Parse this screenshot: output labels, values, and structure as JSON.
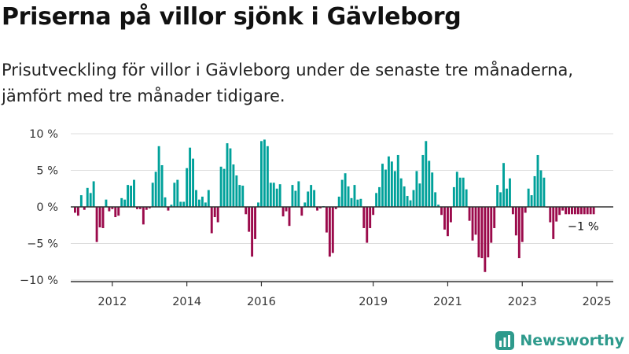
{
  "header": {
    "title": "Priserna på villor sjönk i Gävleborg",
    "subtitle": "Prisutveckling för villor i Gävleborg under de senaste tre månaderna, jämfört med tre månader tidigare."
  },
  "brand": {
    "name": "Newsworthy",
    "color": "#2e9a8c"
  },
  "colors": {
    "positive": "#00a19a",
    "negative": "#9b0a4b",
    "axis": "#333333",
    "grid": "#dcdcdc"
  },
  "chart_data": {
    "type": "bar",
    "ylim": [
      -10,
      10
    ],
    "y_ticks": [
      {
        "value": 10,
        "label": "10 %"
      },
      {
        "value": 5,
        "label": "5 %"
      },
      {
        "value": 0,
        "label": "0 %"
      },
      {
        "value": -5,
        "label": "−5 %"
      },
      {
        "value": -10,
        "label": "−10 %"
      }
    ],
    "x_ticks": [
      {
        "year": 2012,
        "label": "2012"
      },
      {
        "year": 2014,
        "label": "2014"
      },
      {
        "year": 2016,
        "label": "2016"
      },
      {
        "year": 2019,
        "label": "2019"
      },
      {
        "year": 2021,
        "label": "2021"
      },
      {
        "year": 2023,
        "label": "2023"
      },
      {
        "year": 2025,
        "label": "2025"
      }
    ],
    "period": {
      "start": "2011-01",
      "end": "2024-12",
      "frequency": "monthly"
    },
    "values": [
      -0.8,
      -1.2,
      1.6,
      -0.4,
      2.6,
      1.9,
      3.5,
      -4.8,
      -2.8,
      -2.9,
      1.0,
      -0.6,
      -0.3,
      -1.4,
      -1.2,
      1.2,
      1.0,
      3.0,
      2.9,
      3.7,
      -0.3,
      -0.3,
      -2.4,
      -0.4,
      -0.2,
      3.3,
      4.8,
      8.3,
      5.7,
      1.3,
      -0.5,
      0.3,
      3.3,
      3.7,
      0.7,
      0.7,
      5.3,
      8.1,
      6.6,
      2.3,
      1.0,
      1.4,
      0.6,
      2.3,
      -3.6,
      -1.4,
      -2.1,
      5.5,
      5.2,
      8.7,
      8.0,
      5.8,
      4.3,
      3.0,
      2.9,
      -1.0,
      -3.4,
      -6.8,
      -4.4,
      0.6,
      9.0,
      9.2,
      8.3,
      3.3,
      3.3,
      2.5,
      3.1,
      -1.3,
      -0.6,
      -2.6,
      3.0,
      2.2,
      3.5,
      -1.2,
      0.6,
      2.1,
      3.0,
      2.3,
      -0.5,
      -0.2,
      0.1,
      -3.5,
      -6.8,
      -6.3,
      -0.3,
      1.4,
      3.7,
      4.6,
      2.8,
      1.2,
      3.0,
      1.0,
      1.1,
      -2.9,
      -4.9,
      -2.9,
      -1.1,
      1.9,
      2.7,
      5.9,
      5.1,
      6.9,
      6.2,
      4.9,
      7.1,
      3.9,
      2.8,
      1.5,
      0.9,
      2.3,
      4.9,
      3.2,
      7.1,
      9.0,
      6.3,
      4.7,
      2.0,
      0.3,
      -1.1,
      -3.1,
      -4.0,
      -2.1,
      2.7,
      4.8,
      4.0,
      4.0,
      2.4,
      -1.9,
      -4.6,
      -3.8,
      -6.9,
      -7.0,
      -8.9,
      -6.9,
      -4.9,
      -2.9,
      3.0,
      2.0,
      6.0,
      2.5,
      3.9,
      -1.0,
      -3.9,
      -7.0,
      -4.8,
      -0.8,
      2.5,
      1.6,
      4.2,
      7.1,
      5.0,
      4.0,
      -0.1,
      -2.1,
      -4.4,
      -2.0,
      -1.1,
      -0.5,
      -1.0,
      -1.0,
      -1.0,
      -1.0,
      -1.0,
      -1.0,
      -1.0,
      -1.0,
      -1.0,
      -1.0
    ],
    "annotations": [
      {
        "text": "−1 %"
      }
    ]
  }
}
